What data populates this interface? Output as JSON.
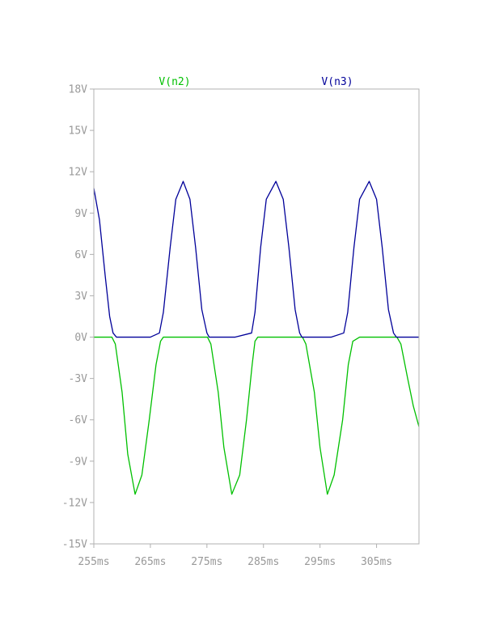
{
  "chart_data": {
    "type": "line",
    "x_unit": "ms",
    "y_unit": "V",
    "xlim": [
      255,
      312.5
    ],
    "ylim": [
      -15,
      18
    ],
    "x_ticks": [
      {
        "value": 255,
        "label": "255ms"
      },
      {
        "value": 265,
        "label": "265ms"
      },
      {
        "value": 275,
        "label": "275ms"
      },
      {
        "value": 285,
        "label": "285ms"
      },
      {
        "value": 295,
        "label": "295ms"
      },
      {
        "value": 305,
        "label": "305ms"
      }
    ],
    "y_ticks": [
      {
        "value": 18,
        "label": "18V"
      },
      {
        "value": 15,
        "label": "15V"
      },
      {
        "value": 12,
        "label": "12V"
      },
      {
        "value": 9,
        "label": "9V"
      },
      {
        "value": 6,
        "label": "6V"
      },
      {
        "value": 3,
        "label": "3V"
      },
      {
        "value": 0,
        "label": "0V"
      },
      {
        "value": -3,
        "label": "-3V"
      },
      {
        "value": -6,
        "label": "-6V"
      },
      {
        "value": -9,
        "label": "-9V"
      },
      {
        "value": -12,
        "label": "-12V"
      },
      {
        "value": -15,
        "label": "-15V"
      }
    ],
    "grid": false,
    "legend_position": "top",
    "series": [
      {
        "name": "V(n2)",
        "color": "#00c000",
        "x": [
          255,
          257,
          258.2,
          258.8,
          260,
          261,
          262.3,
          263.5,
          264.8,
          266,
          266.8,
          267.3,
          268,
          270,
          272,
          274,
          275.1,
          275.7,
          277,
          278,
          279.4,
          280.8,
          282,
          283,
          283.5,
          284,
          286,
          288,
          290,
          291.9,
          292.5,
          294,
          295,
          296.3,
          297.5,
          299,
          300,
          300.8,
          302,
          304,
          306,
          308,
          308.6,
          309.3,
          310.5,
          311.5,
          312.5
        ],
        "y": [
          0,
          0,
          0,
          -0.5,
          -4,
          -8.5,
          -11.4,
          -10,
          -6,
          -2,
          -0.3,
          0,
          0,
          0,
          0,
          0,
          0,
          -0.5,
          -4,
          -8,
          -11.4,
          -10,
          -6,
          -2,
          -0.3,
          0,
          0,
          0,
          0,
          0,
          -0.5,
          -4,
          -8,
          -11.4,
          -10,
          -6,
          -2,
          -0.3,
          0,
          0,
          0,
          0,
          0,
          -0.5,
          -3,
          -5,
          -6.5
        ]
      },
      {
        "name": "V(n3)",
        "color": "#000099",
        "x": [
          255,
          256,
          257,
          257.8,
          258.4,
          259,
          262,
          265,
          266.6,
          267.3,
          268.5,
          269.5,
          270.8,
          272,
          273,
          274.1,
          275,
          275.4,
          277,
          280,
          282.9,
          283.5,
          284.5,
          285.5,
          287.2,
          288.5,
          289.5,
          290.6,
          291.4,
          291.8,
          294,
          297,
          299.2,
          299.9,
          301,
          302,
          303.7,
          305,
          306,
          307.1,
          308,
          308.5,
          310,
          312.5
        ],
        "y": [
          10.8,
          8.5,
          4.5,
          1.5,
          0.3,
          0,
          0,
          0,
          0.3,
          1.8,
          6.5,
          10,
          11.3,
          10,
          6.5,
          2,
          0.3,
          0,
          0,
          0,
          0.3,
          1.8,
          6.5,
          10,
          11.3,
          10,
          6.5,
          2,
          0.3,
          0,
          0,
          0,
          0.3,
          1.8,
          6.5,
          10,
          11.3,
          10,
          6.5,
          2,
          0.3,
          0,
          0,
          0
        ]
      }
    ]
  }
}
